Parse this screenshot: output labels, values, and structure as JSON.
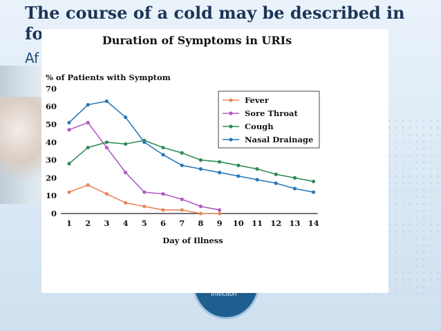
{
  "slide": {
    "title_line1": "The course of a cold may be described in",
    "title_line2": "fo",
    "subtitle": "Af",
    "circle_label": "infection"
  },
  "chart_data": {
    "type": "line",
    "title": "Duration of Symptoms in URIs",
    "ylabel": "% of Patients with Symptom",
    "xlabel": "Day of Illness",
    "x": [
      1,
      2,
      3,
      4,
      5,
      6,
      7,
      8,
      9,
      10,
      11,
      12,
      13,
      14
    ],
    "ylim": [
      0,
      70
    ],
    "yticks": [
      0,
      10,
      20,
      30,
      40,
      50,
      60,
      70
    ],
    "legend_position": "top-right",
    "grid": false,
    "series": [
      {
        "name": "Fever",
        "color": "#e8875a",
        "x": [
          1,
          2,
          3,
          4,
          5,
          6,
          7,
          8,
          9
        ],
        "values": [
          12,
          16,
          11,
          6,
          4,
          2,
          2,
          0,
          0
        ]
      },
      {
        "name": "Sore Throat",
        "color": "#b05bc4",
        "x": [
          1,
          2,
          3,
          4,
          5,
          6,
          7,
          8,
          9
        ],
        "values": [
          47,
          51,
          37,
          23,
          12,
          11,
          8,
          4,
          2
        ]
      },
      {
        "name": "Cough",
        "color": "#2e8b57",
        "x": [
          1,
          2,
          3,
          4,
          5,
          6,
          7,
          8,
          9,
          10,
          11,
          12,
          13,
          14
        ],
        "values": [
          28,
          37,
          40,
          39,
          41,
          37,
          34,
          30,
          29,
          27,
          25,
          22,
          20,
          18
        ]
      },
      {
        "name": "Nasal Drainage",
        "color": "#2a79b8",
        "x": [
          1,
          2,
          3,
          4,
          5,
          6,
          7,
          8,
          9,
          10,
          11,
          12,
          13,
          14
        ],
        "values": [
          51,
          61,
          63,
          54,
          40,
          33,
          27,
          25,
          23,
          21,
          19,
          17,
          14,
          12
        ]
      }
    ]
  }
}
